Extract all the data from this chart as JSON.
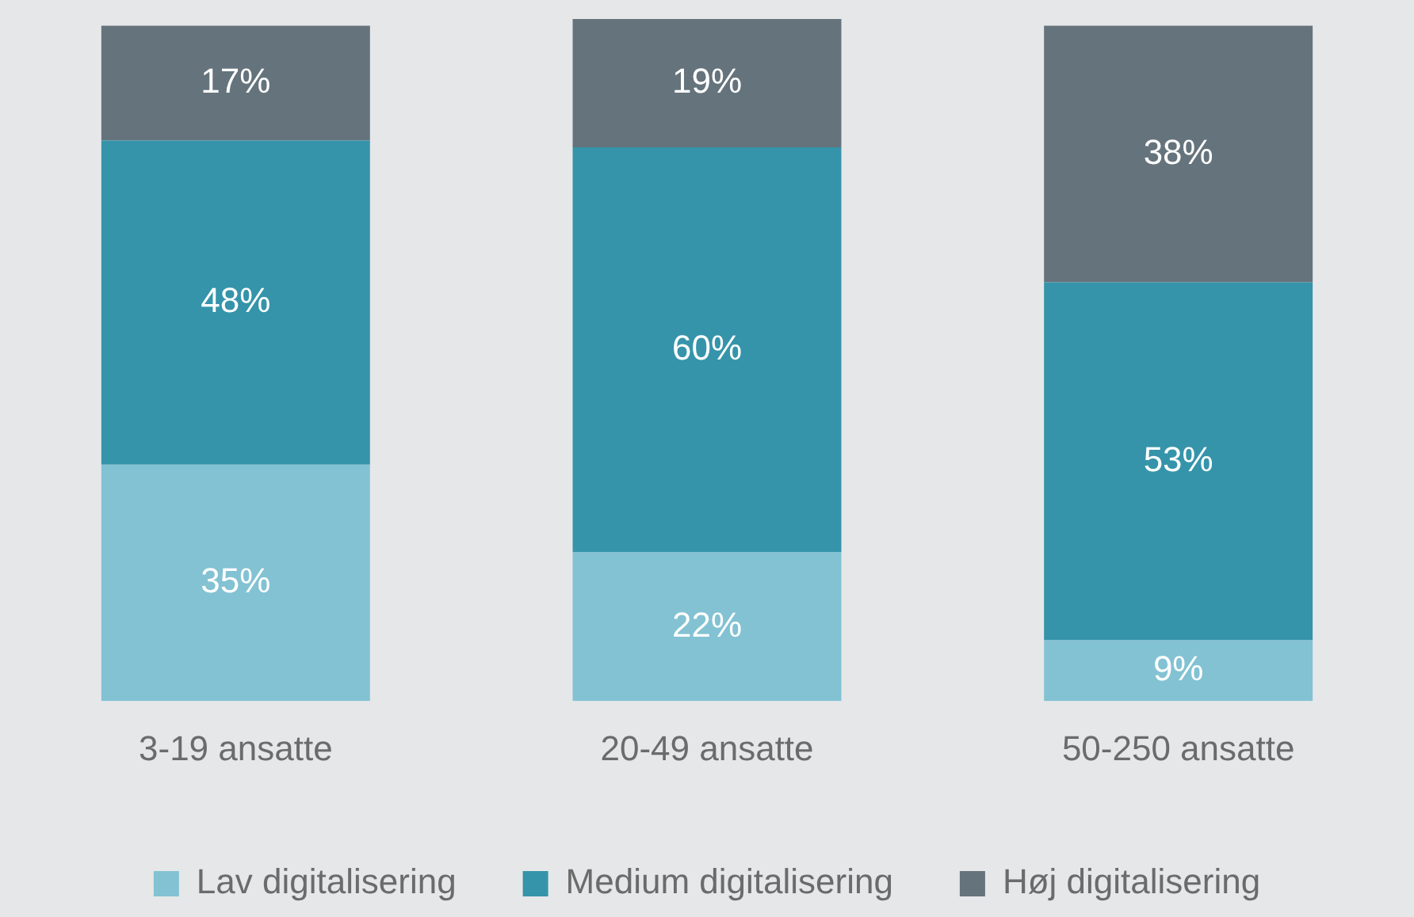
{
  "chart_data": {
    "type": "bar",
    "stacked": true,
    "categories": [
      "3-19 ansatte",
      "20-49 ansatte",
      "50-250 ansatte"
    ],
    "series": [
      {
        "name": "Lav digitalisering",
        "color": "#82c2d3",
        "values": [
          35,
          22,
          9
        ],
        "value_labels": [
          "35%",
          "22%",
          "9%"
        ]
      },
      {
        "name": "Medium digitalisering",
        "color": "#3594aa",
        "values": [
          48,
          60,
          53
        ],
        "value_labels": [
          "48%",
          "60%",
          "53%"
        ]
      },
      {
        "name": "Høj digitalisering",
        "color": "#65737c",
        "values": [
          17,
          19,
          38
        ],
        "value_labels": [
          "17%",
          "19%",
          "38%"
        ]
      }
    ],
    "legend": "bottom",
    "grid": false
  }
}
